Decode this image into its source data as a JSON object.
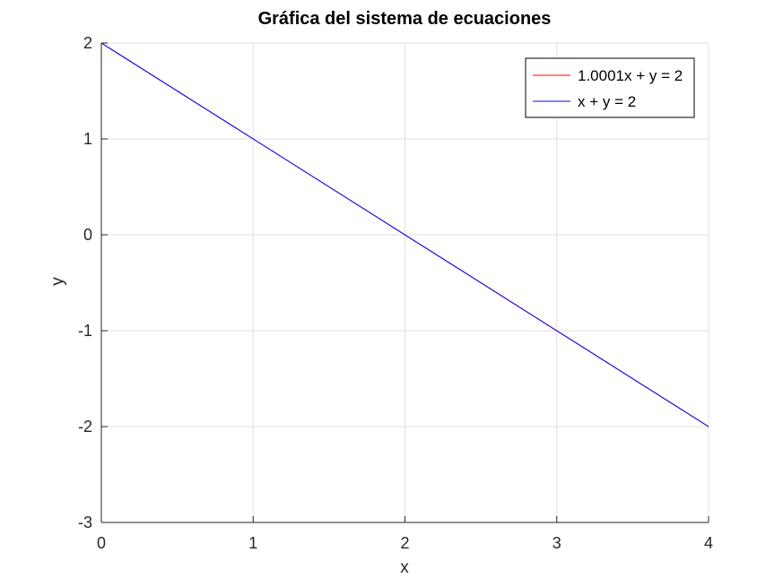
{
  "chart_data": {
    "type": "line",
    "title": "Gráfica del sistema de ecuaciones",
    "xlabel": "x",
    "ylabel": "y",
    "xlim": [
      0,
      4
    ],
    "ylim": [
      -3,
      2
    ],
    "xticks": [
      "0",
      "1",
      "2",
      "3",
      "4"
    ],
    "yticks": [
      "-3",
      "-2",
      "-1",
      "0",
      "1",
      "2"
    ],
    "grid": true,
    "legend_position": "top-right",
    "series": [
      {
        "name": "1.0001x + y = 2",
        "color": "#ff0000",
        "x": [
          0,
          1,
          2,
          3,
          4
        ],
        "y": [
          2,
          0.9999,
          -0.0002,
          -1.0003,
          -2.0004
        ]
      },
      {
        "name": "x + y = 2",
        "color": "#0000ff",
        "x": [
          0,
          1,
          2,
          3,
          4
        ],
        "y": [
          2,
          1,
          0,
          -1,
          -2
        ]
      }
    ]
  }
}
